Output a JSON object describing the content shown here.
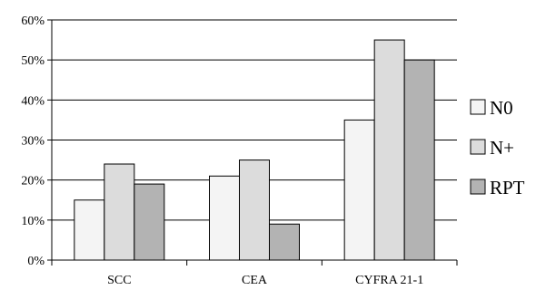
{
  "chart_data": {
    "type": "bar",
    "categories": [
      "SCC",
      "CEA",
      "CYFRA 21-1"
    ],
    "series": [
      {
        "name": "N0",
        "values": [
          15,
          21,
          35
        ],
        "color": "#f4f4f4"
      },
      {
        "name": "N+",
        "values": [
          24,
          25,
          55
        ],
        "color": "#dcdcdc"
      },
      {
        "name": "RPT",
        "values": [
          19,
          9,
          50
        ],
        "color": "#b3b3b3"
      }
    ],
    "y_ticks": [
      "0%",
      "10%",
      "20%",
      "30%",
      "40%",
      "50%",
      "60%"
    ],
    "ylim": [
      0,
      60
    ],
    "y_unit": "%",
    "grid": true,
    "legend_position": "right"
  }
}
